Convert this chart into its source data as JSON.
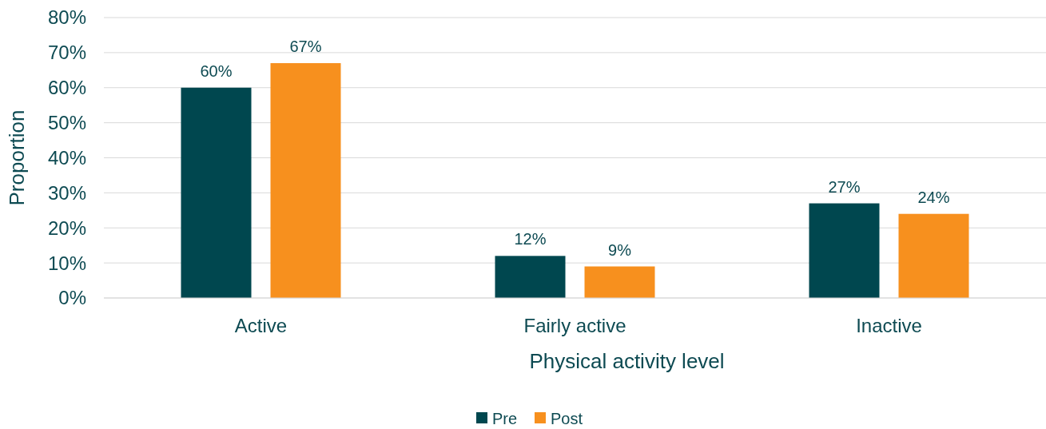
{
  "chart_data": {
    "type": "bar",
    "xlabel": "Physical activity level",
    "ylabel": "Proportion",
    "categories": [
      "Active",
      "Fairly active",
      "Inactive"
    ],
    "series": [
      {
        "name": "Pre",
        "color": "#00474f",
        "values": [
          60,
          12,
          27
        ],
        "value_labels": [
          "60%",
          "12%",
          "27%"
        ]
      },
      {
        "name": "Post",
        "color": "#f7901e",
        "values": [
          67,
          9,
          24
        ],
        "value_labels": [
          "67%",
          "9%",
          "24%"
        ]
      }
    ],
    "ylim": [
      0,
      80
    ],
    "yticks": [
      {
        "value": 0,
        "label": "0%"
      },
      {
        "value": 10,
        "label": "10%"
      },
      {
        "value": 20,
        "label": "20%"
      },
      {
        "value": 30,
        "label": "30%"
      },
      {
        "value": 40,
        "label": "40%"
      },
      {
        "value": 50,
        "label": "50%"
      },
      {
        "value": 60,
        "label": "60%"
      },
      {
        "value": 70,
        "label": "70%"
      },
      {
        "value": 80,
        "label": "80%"
      }
    ],
    "grid": "y",
    "legend": "bottom"
  }
}
